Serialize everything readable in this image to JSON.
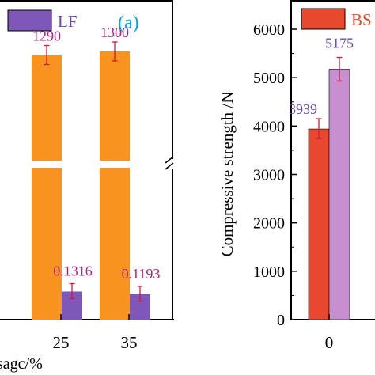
{
  "colors": {
    "orange": "#F7931E",
    "purple": "#7E57B8",
    "red": "#E8492E",
    "pink": "#C58FD0",
    "label_magenta": "#B4237F",
    "label_purple": "#6C4AB2",
    "errorbar": "#D01A3A",
    "panel_label_blue": "#00A3E8",
    "axis": "#000000"
  },
  "chart_data": [
    {
      "type": "bar",
      "panel_label": "(a)",
      "legend": [
        {
          "name": "LF",
          "color": "#7E57B8",
          "placement": "top-left (partially cropped)"
        }
      ],
      "xlabel": "sagc/%",
      "categories": [
        "25",
        "35"
      ],
      "axis_break": true,
      "series": [
        {
          "values": [
            1290,
            1300
          ],
          "labels": [
            "1290",
            "1300"
          ],
          "color": "#F7931E",
          "segment": "upper"
        },
        {
          "name": "LF",
          "values": [
            0.1316,
            0.1193
          ],
          "labels": [
            "0.1316",
            "0.1193"
          ],
          "color": "#7E57B8",
          "segment": "lower"
        }
      ]
    },
    {
      "type": "bar",
      "legend": [
        {
          "name": "BS",
          "color": "#E8492E",
          "placement": "top-right (cropped)"
        }
      ],
      "ylabel": "Compressive strength /N",
      "ylim": [
        0,
        6000
      ],
      "yticks": [
        0,
        1000,
        2000,
        3000,
        4000,
        5000,
        6000
      ],
      "categories": [
        "0"
      ],
      "grid": false,
      "series": [
        {
          "name": "BS",
          "values": [
            3939
          ],
          "labels": [
            "3939"
          ],
          "color": "#E8492E"
        },
        {
          "values": [
            5175
          ],
          "labels": [
            "5175"
          ],
          "color": "#C58FD0"
        }
      ]
    }
  ]
}
